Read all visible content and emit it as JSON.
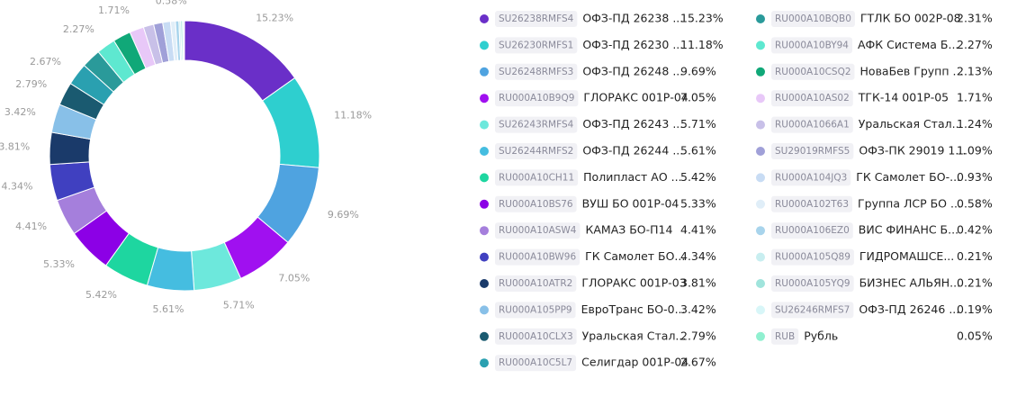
{
  "chart_data": {
    "type": "pie",
    "donut": true,
    "tickers": [
      "SU26238RMFS4",
      "SU26230RMFS1",
      "SU26248RMFS3",
      "RU000A10B9Q9",
      "SU26243RMFS4",
      "SU26244RMFS2",
      "RU000A10CH11",
      "RU000A10BS76",
      "RU000A10ASW4",
      "RU000A10BW96",
      "RU000A10ATR2",
      "RU000A105PP9",
      "RU000A10CLX3",
      "RU000A10C5L7",
      "RU000A10BQB0",
      "RU000A10BY94",
      "RU000A10CSQ2",
      "RU000A10AS02",
      "RU000A1066A1",
      "SU29019RMFS5",
      "RU000A104JQ3",
      "RU000A102T63",
      "RU000A106EZ0",
      "RU000A105Q89",
      "RU000A105YQ9",
      "SU26246RMFS7",
      "RUB"
    ],
    "categories": [
      "ОФЗ-ПД 26238 ...",
      "ОФЗ-ПД 26230 ...",
      "ОФЗ-ПД 26248 ...",
      "ГЛОРАКС 001Р-04",
      "ОФЗ-ПД 26243 ...",
      "ОФЗ-ПД 26244 ...",
      "Полипласт АО ...",
      "ВУШ БО 001Р-04",
      "КАМАЗ БО-П14",
      "ГК Самолет БО...",
      "ГЛОРАКС 001Р-03",
      "ЕвроТранс БО-0...",
      "Уральская Стал...",
      "Селигдар 001Р-04",
      "ГТЛК БО 002Р-08",
      "АФК Система Б...",
      "НоваБев Групп ...",
      "ТГК-14 001Р-05",
      "Уральская Стал...",
      "ОФЗ-ПК 29019 1...",
      "ГК Самолет БО-...",
      "Группа ЛСР БО ...",
      "ВИС ФИНАНС Б...",
      "ГИДРОМАШСЕ...",
      "БИЗНЕС АЛЬЯН...",
      "ОФЗ-ПД 26246 ...",
      "Рубль"
    ],
    "values": [
      15.23,
      11.18,
      9.69,
      7.05,
      5.71,
      5.61,
      5.42,
      5.33,
      4.41,
      4.34,
      3.81,
      3.42,
      2.79,
      2.67,
      2.31,
      2.27,
      2.13,
      1.71,
      1.24,
      1.09,
      0.93,
      0.58,
      0.42,
      0.21,
      0.21,
      0.19,
      0.05
    ],
    "value_labels": [
      "15.23%",
      "11.18%",
      "9.69%",
      "7.05%",
      "5.71%",
      "5.61%",
      "5.42%",
      "5.33%",
      "4.41%",
      "4.34%",
      "3.81%",
      "3.42%",
      "2.79%",
      "2.67%",
      "2.31%",
      "2.27%",
      "2.13%",
      "1.71%",
      "1.24%",
      "1.09%",
      "0.93%",
      "0.58%",
      "0.42%",
      "0.21%",
      "0.21%",
      "0.19%",
      "0.05%"
    ],
    "colors": [
      "#6a2fc8",
      "#2ecfcf",
      "#4fa3e0",
      "#a010f0",
      "#6de8dc",
      "#45bde0",
      "#1ed6a0",
      "#8c00e6",
      "#a57fdc",
      "#4040c0",
      "#1a3a6a",
      "#88c0e8",
      "#1a5a70",
      "#2aa0b0",
      "#2a9a9a",
      "#5ee8d0",
      "#10a878",
      "#e8c8f8",
      "#c8c0e8",
      "#a0a0d8",
      "#c8dcf4",
      "#e0eef8",
      "#a8d4ec",
      "#c8eef0",
      "#a0e4dc",
      "#d8f6f8",
      "#90f0d0"
    ]
  }
}
